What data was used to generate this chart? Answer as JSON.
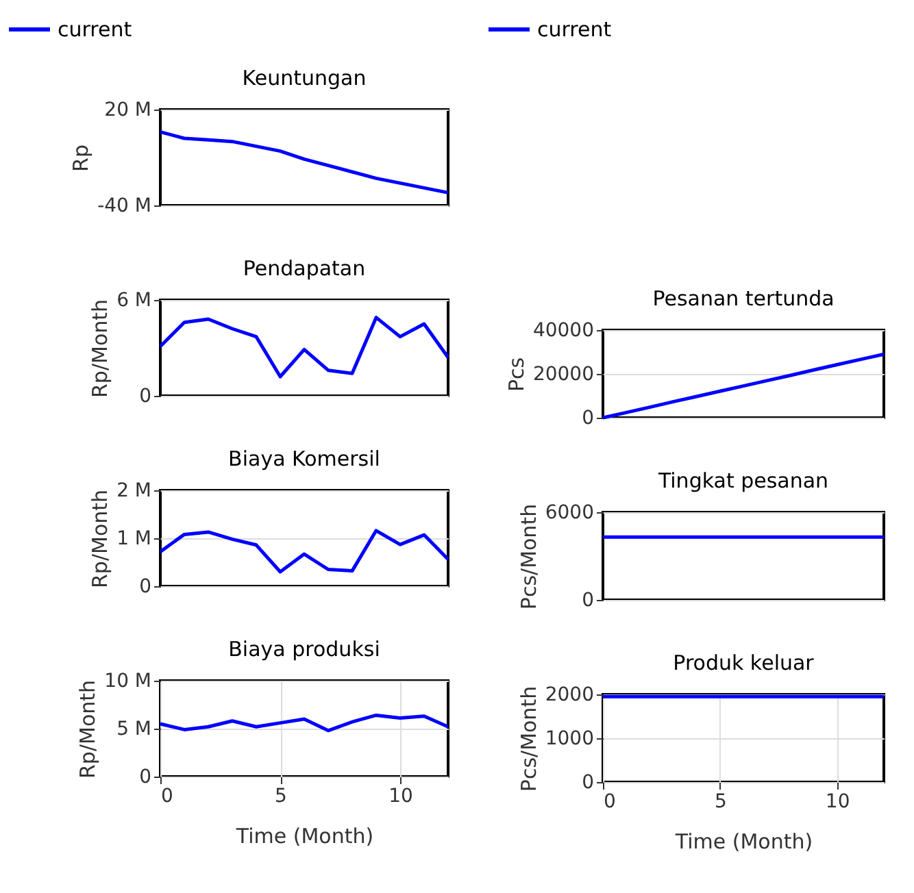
{
  "chart_data": [
    {
      "type": "line",
      "title": "Keuntungan",
      "ylabel": "Rp",
      "categories": [
        null,
        null,
        null,
        null,
        null,
        null,
        null,
        null,
        null,
        null,
        null,
        null,
        null
      ],
      "ylim": [
        -40000000,
        20000000
      ],
      "yticks": [
        {
          "value": -40000000,
          "label": "-40 M"
        },
        {
          "value": 20000000,
          "label": "20 M"
        }
      ],
      "grid": "y",
      "legend": "top left",
      "line_style": "solid",
      "marker": "none",
      "series": [
        {
          "name": "current",
          "color": "#0000ff",
          "values": [
            6000000,
            2000000,
            1000000,
            0,
            -3000000,
            -6000000,
            -11000000,
            -15000000,
            -19000000,
            -23000000,
            -26000000,
            -29000000,
            -32000000
          ]
        }
      ]
    },
    {
      "type": "line",
      "title": "Pendapatan",
      "ylabel": "Rp/Month",
      "categories": [
        null,
        null,
        null,
        null,
        null,
        null,
        null,
        null,
        null,
        null,
        null,
        null,
        null
      ],
      "ylim": [
        0,
        6000000
      ],
      "yticks": [
        {
          "value": 0,
          "label": "0"
        },
        {
          "value": 6000000,
          "label": "6 M"
        }
      ],
      "grid": "y",
      "line_style": "solid",
      "marker": "none",
      "series": [
        {
          "color": "#0000ff",
          "values": [
            3100000,
            4600000,
            4800000,
            4200000,
            3700000,
            1200000,
            2900000,
            1600000,
            1400000,
            4900000,
            3700000,
            4500000,
            2400000
          ]
        }
      ]
    },
    {
      "type": "line",
      "title": "Biaya Komersil",
      "ylabel": "Rp/Month",
      "categories": [
        null,
        null,
        null,
        null,
        null,
        null,
        null,
        null,
        null,
        null,
        null,
        null,
        null
      ],
      "ylim": [
        0,
        2000000
      ],
      "yticks": [
        {
          "value": 0,
          "label": "0"
        },
        {
          "value": 1000000,
          "label": "1 M"
        },
        {
          "value": 2000000,
          "label": "2 M"
        }
      ],
      "grid": "y",
      "line_style": "solid",
      "marker": "none",
      "series": [
        {
          "color": "#0000ff",
          "values": [
            720000,
            1080000,
            1130000,
            980000,
            860000,
            300000,
            670000,
            350000,
            320000,
            1160000,
            870000,
            1070000,
            560000
          ]
        }
      ]
    },
    {
      "type": "line",
      "title": "Biaya produksi",
      "xlabel": "Time (Month)",
      "ylabel": "Rp/Month",
      "x": [
        0,
        1,
        2,
        3,
        4,
        5,
        6,
        7,
        8,
        9,
        10,
        11,
        12
      ],
      "xlim": [
        0,
        12
      ],
      "xticks": [
        0,
        5,
        10
      ],
      "ylim": [
        0,
        10000000
      ],
      "yticks": [
        {
          "value": 0,
          "label": "0"
        },
        {
          "value": 5000000,
          "label": "5 M"
        },
        {
          "value": 10000000,
          "label": "10 M"
        }
      ],
      "grid": true,
      "line_style": "solid",
      "marker": "none",
      "series": [
        {
          "color": "#0000ff",
          "values": [
            5500000,
            4900000,
            5200000,
            5800000,
            5200000,
            5600000,
            6000000,
            4800000,
            5700000,
            6400000,
            6100000,
            6300000,
            5200000
          ]
        }
      ]
    },
    {
      "type": "line",
      "title": "Pesanan tertunda",
      "ylabel": "Pcs",
      "categories": [
        null,
        null,
        null,
        null,
        null,
        null,
        null,
        null,
        null,
        null,
        null,
        null,
        null
      ],
      "ylim": [
        0,
        40000
      ],
      "yticks": [
        0,
        20000,
        40000
      ],
      "grid": "y",
      "legend": "top left",
      "line_style": "solid",
      "marker": "none",
      "series": [
        {
          "name": "current",
          "color": "#0000ff",
          "values": [
            0,
            2400,
            4800,
            7300,
            9700,
            12100,
            14500,
            16900,
            19300,
            21800,
            24200,
            26600,
            29000
          ]
        }
      ]
    },
    {
      "type": "line",
      "title": "Tingkat pesanan",
      "ylabel": "Pcs/Month",
      "categories": [
        null,
        null,
        null,
        null,
        null,
        null,
        null,
        null,
        null,
        null,
        null,
        null,
        null
      ],
      "ylim": [
        0,
        6000
      ],
      "yticks": [
        0,
        6000
      ],
      "grid": "y",
      "line_style": "solid",
      "marker": "none",
      "series": [
        {
          "color": "#0000ff",
          "values": [
            4300,
            4300,
            4300,
            4300,
            4300,
            4300,
            4300,
            4300,
            4300,
            4300,
            4300,
            4300,
            4300
          ]
        }
      ]
    },
    {
      "type": "line",
      "title": "Produk keluar",
      "xlabel": "Time (Month)",
      "ylabel": "Pcs/Month",
      "x": [
        0,
        1,
        2,
        3,
        4,
        5,
        6,
        7,
        8,
        9,
        10,
        11,
        12
      ],
      "xlim": [
        0,
        12
      ],
      "xticks": [
        0,
        5,
        10
      ],
      "ylim": [
        0,
        2000
      ],
      "yticks": [
        0,
        1000,
        2000
      ],
      "grid": true,
      "line_style": "solid",
      "marker": "none",
      "series": [
        {
          "color": "#0000ff",
          "values": [
            1950,
            1950,
            1950,
            1950,
            1950,
            1950,
            1950,
            1950,
            1950,
            1950,
            1950,
            1950,
            1950
          ]
        }
      ]
    }
  ]
}
